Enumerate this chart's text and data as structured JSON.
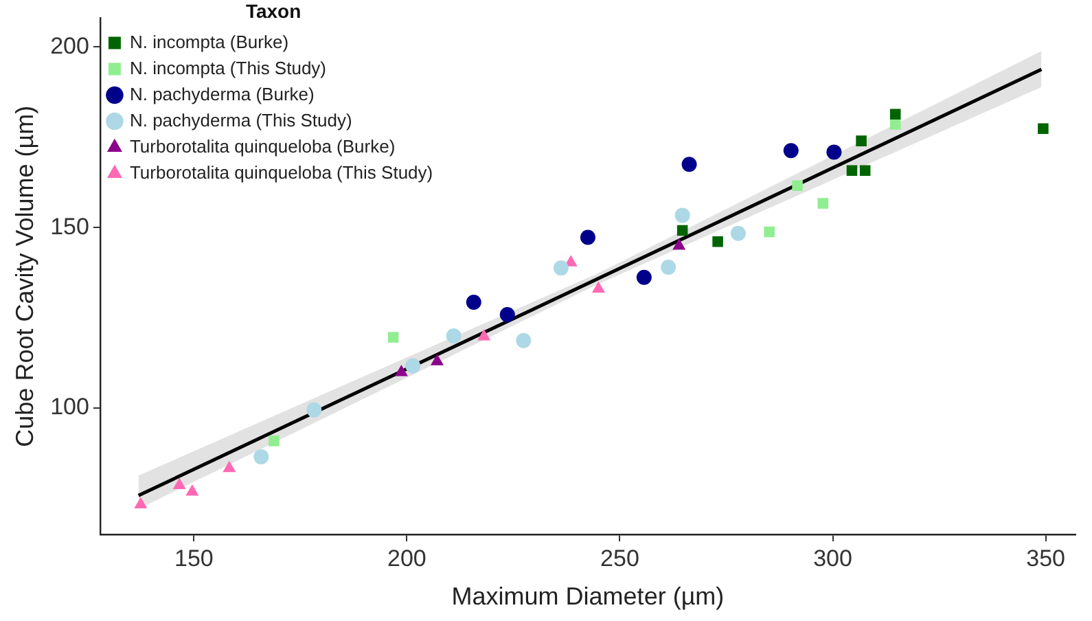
{
  "chart_data": {
    "type": "scatter",
    "xlabel": "Maximum Diameter (µm)",
    "ylabel": "Cube Root Cavity Volume (µm)",
    "legend_title": "Taxon",
    "legend": "top left",
    "grid": false,
    "xlim": [
      128,
      357
    ],
    "xticks": [
      150,
      200,
      250,
      300,
      350
    ],
    "ylim": [
      65,
      208
    ],
    "yticks": [
      100,
      150,
      200
    ],
    "series": [
      {
        "name": "N. incompta (Burke)",
        "color": "#006400",
        "marker": "square",
        "x": [
          264.7,
          273,
          306.7,
          304.5,
          307.6,
          314.7,
          349.4
        ],
        "values": [
          149.2,
          146.1,
          174,
          165.8,
          165.8,
          181.4,
          177.4
        ]
      },
      {
        "name": "N. incompta (This Study)",
        "color": "#90ee90",
        "marker": "square",
        "x": [
          168.8,
          196.8,
          285.1,
          291.7,
          297.7,
          314.7
        ],
        "values": [
          90.9,
          119.6,
          148.8,
          161.6,
          156.7,
          178.6
        ]
      },
      {
        "name": "N. pachyderma (Burke)",
        "color": "#00008b",
        "marker": "circle",
        "x": [
          215.7,
          223.6,
          242.5,
          255.7,
          266.3,
          290.2,
          300.3
        ],
        "values": [
          129.3,
          125.9,
          147.3,
          136.2,
          167.5,
          171.3,
          170.9
        ]
      },
      {
        "name": "N. pachyderma (This Study)",
        "color": "#add8e6",
        "marker": "circle",
        "x": [
          165.8,
          178.2,
          201.4,
          211,
          227.4,
          236.2,
          261.4,
          264.7,
          277.8
        ],
        "values": [
          86.5,
          99.5,
          111.7,
          120,
          118.7,
          138.8,
          139,
          153.4,
          148.4
        ]
      },
      {
        "name": "Turborotalita quinqueloba (Burke)",
        "color": "#8b008b",
        "marker": "triangle",
        "x": [
          198.7,
          207.1,
          263.9
        ],
        "values": [
          109.9,
          112.9,
          144.9
        ]
      },
      {
        "name": "Turborotalita quinqueloba (This Study)",
        "color": "#ff69b4",
        "marker": "triangle",
        "x": [
          137.5,
          146.6,
          149.6,
          158.3,
          218.1,
          238.5,
          245
        ],
        "values": [
          73.3,
          78.6,
          76.8,
          83.3,
          119.8,
          140.3,
          133
        ]
      },
      {
        "type": "line",
        "color": "#000000",
        "marker": "none",
        "x": [
          137,
          245,
          349
        ],
        "values": [
          75.8,
          135.9,
          193.8
        ],
        "lower": [
          72.1,
          134.4,
          188.9
        ],
        "upper": [
          81.3,
          137.4,
          198.9
        ]
      }
    ]
  }
}
